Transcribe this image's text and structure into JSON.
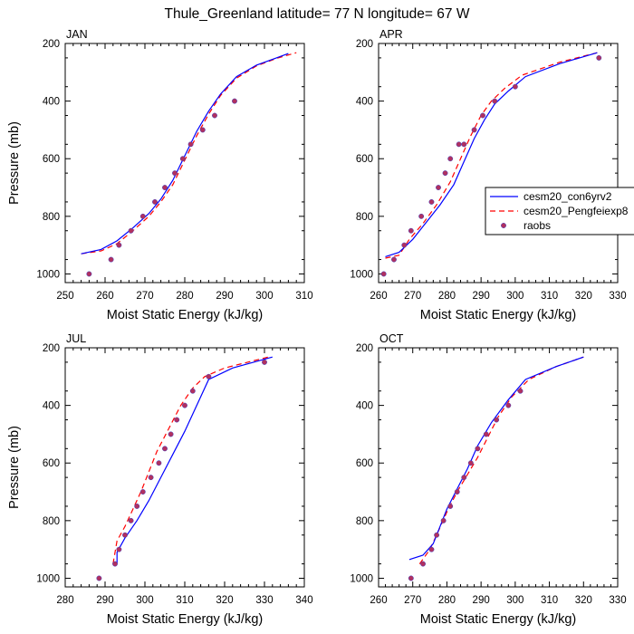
{
  "figure_title": "Thule_Greenland  latitude= 77 N longitude= 67 W",
  "colors": {
    "series1": "#0000ff",
    "series2": "#ff0000",
    "obs": "#b03060",
    "obs_edge": "#4040c0"
  },
  "legend_entries": [
    "cesm20_con6yrv2",
    "cesm20_Pengfeiexp8",
    "raobs"
  ],
  "chart_data": [
    {
      "type": "line",
      "title": "JAN",
      "xlabel": "Moist Static Energy (kJ/kg)",
      "ylabel": "Pressure (mb)",
      "xlim": [
        250,
        310
      ],
      "xticks": [
        250,
        260,
        270,
        280,
        290,
        300,
        310
      ],
      "ylim": [
        200,
        1030
      ],
      "yticks": [
        200,
        400,
        600,
        800,
        1000
      ],
      "y_reversed": true,
      "series": [
        {
          "name": "cesm20_con6yrv2",
          "x": [
            254,
            259,
            263,
            267,
            271,
            274,
            277,
            280,
            283,
            286,
            289,
            293,
            298,
            303,
            306
          ],
          "y": [
            930,
            915,
            885,
            840,
            790,
            740,
            675,
            590,
            505,
            435,
            375,
            315,
            275,
            250,
            235
          ]
        },
        {
          "name": "cesm20_Pengfeiexp8",
          "x": [
            254,
            259,
            263,
            267,
            271,
            274,
            277,
            280,
            283,
            286,
            289,
            293,
            298,
            303,
            308
          ],
          "y": [
            930,
            920,
            895,
            850,
            800,
            750,
            690,
            605,
            520,
            445,
            380,
            320,
            278,
            252,
            232
          ]
        },
        {
          "name": "raobs",
          "x": [
            256,
            261.5,
            263.5,
            266.5,
            269.5,
            272.5,
            275,
            277.5,
            279.5,
            281.5,
            284.5,
            287.5,
            292.5
          ],
          "y": [
            1000,
            950,
            900,
            850,
            800,
            750,
            700,
            650,
            600,
            550,
            500,
            450,
            400
          ]
        }
      ]
    },
    {
      "type": "line",
      "title": "APR",
      "xlabel": "Moist Static Energy (kJ/kg)",
      "ylabel": "",
      "xlim": [
        260,
        330
      ],
      "xticks": [
        260,
        270,
        280,
        290,
        300,
        310,
        320,
        330
      ],
      "ylim": [
        200,
        1030
      ],
      "yticks": [
        200,
        400,
        600,
        800,
        1000
      ],
      "y_reversed": true,
      "series": [
        {
          "name": "cesm20_con6yrv2",
          "x": [
            262,
            266,
            270,
            274,
            278,
            282,
            285,
            288,
            291,
            294,
            298,
            303,
            313,
            324
          ],
          "y": [
            940,
            925,
            880,
            820,
            760,
            690,
            610,
            530,
            465,
            410,
            365,
            315,
            270,
            232
          ]
        },
        {
          "name": "cesm20_Pengfeiexp8",
          "x": [
            262,
            266,
            269,
            273,
            277,
            281,
            284,
            287,
            290,
            293,
            297,
            302,
            313,
            324
          ],
          "y": [
            945,
            935,
            880,
            825,
            760,
            680,
            600,
            520,
            450,
            400,
            355,
            310,
            265,
            232
          ]
        },
        {
          "name": "raobs",
          "x": [
            261.5,
            264.5,
            267.5,
            269.5,
            272.5,
            275.5,
            277.5,
            279.5,
            281,
            283.5,
            285,
            288,
            290.5,
            294,
            300,
            324.5
          ],
          "y": [
            1000,
            950,
            900,
            850,
            800,
            750,
            700,
            650,
            600,
            550,
            550,
            500,
            450,
            400,
            350,
            250
          ]
        }
      ]
    },
    {
      "type": "line",
      "title": "JUL",
      "xlabel": "Moist Static Energy (kJ/kg)",
      "ylabel": "Pressure (mb)",
      "xlim": [
        280,
        340
      ],
      "xticks": [
        280,
        290,
        300,
        310,
        320,
        330,
        340
      ],
      "ylim": [
        200,
        1030
      ],
      "yticks": [
        200,
        400,
        600,
        800,
        1000
      ],
      "y_reversed": true,
      "series": [
        {
          "name": "cesm20_con6yrv2",
          "x": [
            293,
            293,
            295,
            298,
            301,
            304,
            307,
            310,
            313,
            316,
            322,
            332
          ],
          "y": [
            950,
            910,
            860,
            800,
            730,
            650,
            570,
            490,
            400,
            310,
            270,
            232
          ]
        },
        {
          "name": "cesm20_Pengfeiexp8",
          "x": [
            292,
            293,
            295,
            297,
            299,
            301,
            303,
            306,
            309,
            312,
            315,
            320,
            331
          ],
          "y": [
            950,
            870,
            820,
            760,
            700,
            630,
            560,
            480,
            400,
            340,
            300,
            270,
            232
          ]
        },
        {
          "name": "raobs",
          "x": [
            288.5,
            292.5,
            293.5,
            295,
            296.5,
            298,
            299.5,
            301.5,
            303.5,
            305,
            306.5,
            308,
            310,
            312,
            316,
            330
          ],
          "y": [
            1000,
            950,
            900,
            850,
            800,
            750,
            700,
            650,
            600,
            550,
            500,
            450,
            400,
            350,
            300,
            250
          ]
        }
      ]
    },
    {
      "type": "line",
      "title": "OCT",
      "xlabel": "Moist Static Energy (kJ/kg)",
      "ylabel": "",
      "xlim": [
        260,
        330
      ],
      "xticks": [
        260,
        270,
        280,
        290,
        300,
        310,
        320,
        330
      ],
      "ylim": [
        200,
        1030
      ],
      "yticks": [
        200,
        400,
        600,
        800,
        1000
      ],
      "y_reversed": true,
      "series": [
        {
          "name": "cesm20_con6yrv2",
          "x": [
            269,
            273,
            276,
            278,
            280,
            283,
            286,
            289,
            293,
            298,
            303,
            312,
            320
          ],
          "y": [
            935,
            920,
            880,
            820,
            760,
            690,
            620,
            540,
            460,
            380,
            310,
            265,
            232
          ]
        },
        {
          "name": "cesm20_Pengfeiexp8",
          "x": [
            272,
            275,
            277,
            280,
            283,
            286,
            289,
            292,
            295,
            299,
            304,
            312,
            320
          ],
          "y": [
            950,
            900,
            850,
            770,
            700,
            640,
            580,
            510,
            440,
            370,
            310,
            265,
            232
          ]
        },
        {
          "name": "raobs",
          "x": [
            269.5,
            273,
            275.5,
            277,
            279,
            281,
            283,
            285,
            287,
            289,
            291.5,
            294.5,
            298,
            301.5
          ],
          "y": [
            1000,
            950,
            900,
            850,
            800,
            750,
            700,
            650,
            600,
            550,
            500,
            450,
            400,
            350
          ]
        }
      ]
    }
  ]
}
